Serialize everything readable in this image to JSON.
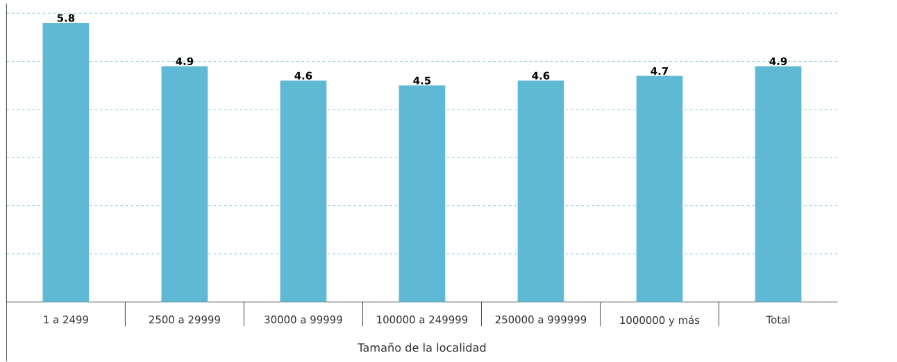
{
  "chart_data": {
    "type": "bar",
    "xlabel": "Tamaño de la localidad",
    "categories": [
      "1 a 2499",
      "2500 a 29999",
      "30000 a 99999",
      "100000 a 249999",
      "250000 a 999999",
      "1000000 y más",
      "Total"
    ],
    "values": [
      5.8,
      4.9,
      4.6,
      4.5,
      4.6,
      4.7,
      4.9
    ],
    "color": "#5fb8d4",
    "ylim": [
      0,
      6.2
    ],
    "yticks": [
      {
        "value": 1,
        "label": null
      },
      {
        "value": 2,
        "label": null
      },
      {
        "value": 3,
        "label": null
      },
      {
        "value": 4,
        "label": null
      },
      {
        "value": 5,
        "label": null
      },
      {
        "value": 6,
        "label": null
      }
    ],
    "grid": "y",
    "data_labels": true,
    "tick_labels": "x"
  }
}
